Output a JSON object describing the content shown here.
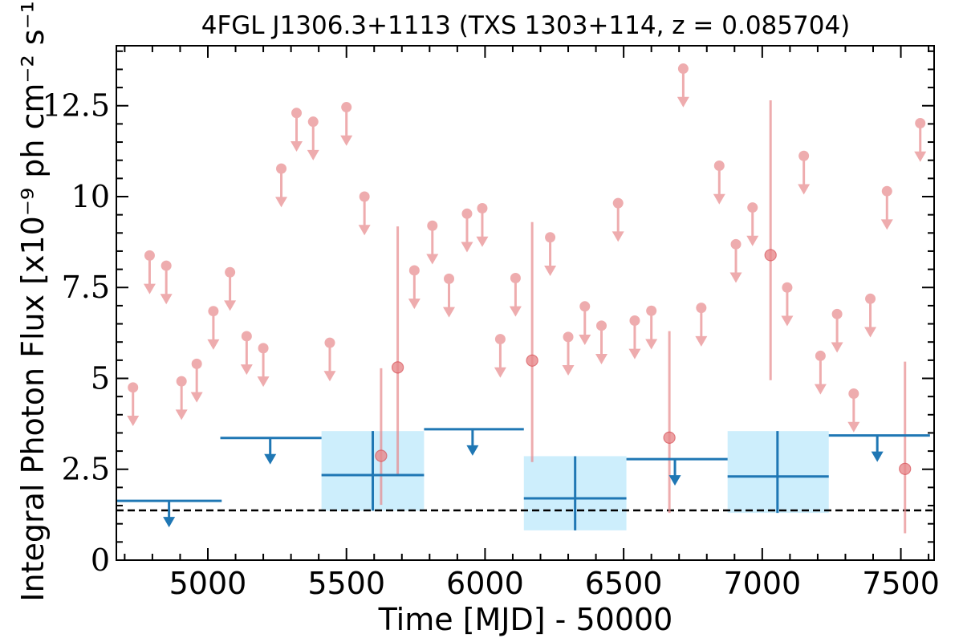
{
  "chart_data": {
    "type": "scatter",
    "title": "4FGL J1306.3+1113 (TXS 1303+114, z = 0.085704)",
    "xlabel": "Time [MJD] - 50000",
    "ylabel": "Integral Photon Flux [x10⁻⁹ ph cm⁻² s⁻¹]",
    "xlim": [
      4670,
      7620
    ],
    "ylim": [
      0,
      14.15
    ],
    "xticks": [
      5000,
      5500,
      6000,
      6500,
      7000,
      7500
    ],
    "xtick_labels": [
      "5000",
      "5500",
      "6000",
      "6500",
      "7000",
      "7500"
    ],
    "yticks": [
      0,
      2.5,
      5,
      7.5,
      10,
      12.5
    ],
    "ytick_labels": [
      "0",
      "2.5",
      "5",
      "7.5",
      "10",
      "12.5"
    ],
    "grid": false,
    "colors": {
      "fine": "#e8898c",
      "coarse": "#1f77b4",
      "coarse_box": "#cdeefc",
      "baseline": "#000000"
    },
    "baseline": 1.37,
    "series": [
      {
        "key": "fine_upper_limits",
        "points": [
          {
            "x": 4730,
            "y": 4.75
          },
          {
            "x": 4790,
            "y": 8.38
          },
          {
            "x": 4850,
            "y": 8.1
          },
          {
            "x": 4905,
            "y": 4.92
          },
          {
            "x": 4960,
            "y": 5.4
          },
          {
            "x": 5020,
            "y": 6.85
          },
          {
            "x": 5080,
            "y": 7.92
          },
          {
            "x": 5140,
            "y": 6.16
          },
          {
            "x": 5200,
            "y": 5.83
          },
          {
            "x": 5265,
            "y": 10.77
          },
          {
            "x": 5320,
            "y": 12.3
          },
          {
            "x": 5380,
            "y": 12.06
          },
          {
            "x": 5440,
            "y": 5.98
          },
          {
            "x": 5500,
            "y": 12.46
          },
          {
            "x": 5565,
            "y": 10.0
          },
          {
            "x": 5745,
            "y": 7.97
          },
          {
            "x": 5810,
            "y": 9.2
          },
          {
            "x": 5870,
            "y": 7.74
          },
          {
            "x": 5935,
            "y": 9.53
          },
          {
            "x": 5990,
            "y": 9.68
          },
          {
            "x": 6055,
            "y": 6.08
          },
          {
            "x": 6110,
            "y": 7.76
          },
          {
            "x": 6235,
            "y": 8.88
          },
          {
            "x": 6300,
            "y": 6.14
          },
          {
            "x": 6360,
            "y": 6.98
          },
          {
            "x": 6420,
            "y": 6.45
          },
          {
            "x": 6480,
            "y": 9.82
          },
          {
            "x": 6540,
            "y": 6.59
          },
          {
            "x": 6600,
            "y": 6.86
          },
          {
            "x": 6780,
            "y": 6.94
          },
          {
            "x": 6845,
            "y": 10.85
          },
          {
            "x": 6905,
            "y": 8.69
          },
          {
            "x": 6965,
            "y": 9.7
          },
          {
            "x": 7090,
            "y": 7.5
          },
          {
            "x": 7150,
            "y": 11.12
          },
          {
            "x": 7210,
            "y": 5.62
          },
          {
            "x": 7270,
            "y": 6.77
          },
          {
            "x": 7330,
            "y": 4.58
          },
          {
            "x": 7390,
            "y": 7.19
          },
          {
            "x": 7450,
            "y": 10.15
          },
          {
            "x": 7570,
            "y": 12.02
          },
          {
            "x": 6715,
            "y": 13.52
          }
        ]
      },
      {
        "key": "fine_detections",
        "points": [
          {
            "x": 5625,
            "y": 2.87,
            "ylow": 1.52,
            "yhigh": 5.28
          },
          {
            "x": 5685,
            "y": 5.3,
            "ylow": 2.32,
            "yhigh": 9.18
          },
          {
            "x": 6170,
            "y": 5.49,
            "ylow": 2.7,
            "yhigh": 9.3
          },
          {
            "x": 6665,
            "y": 3.37,
            "ylow": 1.3,
            "yhigh": 6.3
          },
          {
            "x": 7030,
            "y": 8.39,
            "ylow": 4.95,
            "yhigh": 12.65
          },
          {
            "x": 7515,
            "y": 2.51,
            "ylow": 0.74,
            "yhigh": 5.46
          }
        ]
      },
      {
        "key": "coarse_upper_limits",
        "points": [
          {
            "x": 4860,
            "xlo": 4670,
            "xhi": 5050,
            "y": 1.63
          },
          {
            "x": 5225,
            "xlo": 5045,
            "xhi": 5410,
            "y": 3.36
          },
          {
            "x": 5955,
            "xlo": 5780,
            "xhi": 6140,
            "y": 3.6
          },
          {
            "x": 6685,
            "xlo": 6510,
            "xhi": 6875,
            "y": 2.78
          },
          {
            "x": 7415,
            "xlo": 7240,
            "xhi": 7605,
            "y": 3.43
          }
        ]
      },
      {
        "key": "coarse_detections",
        "points": [
          {
            "x": 5595,
            "xlo": 5410,
            "xhi": 5780,
            "y": 2.34,
            "ylow": 1.36,
            "yhigh": 3.55
          },
          {
            "x": 6325,
            "xlo": 6140,
            "xhi": 6510,
            "y": 1.7,
            "ylow": 0.82,
            "yhigh": 2.86
          },
          {
            "x": 7055,
            "xlo": 6875,
            "xhi": 7240,
            "y": 2.3,
            "ylow": 1.3,
            "yhigh": 3.55
          }
        ]
      }
    ]
  }
}
